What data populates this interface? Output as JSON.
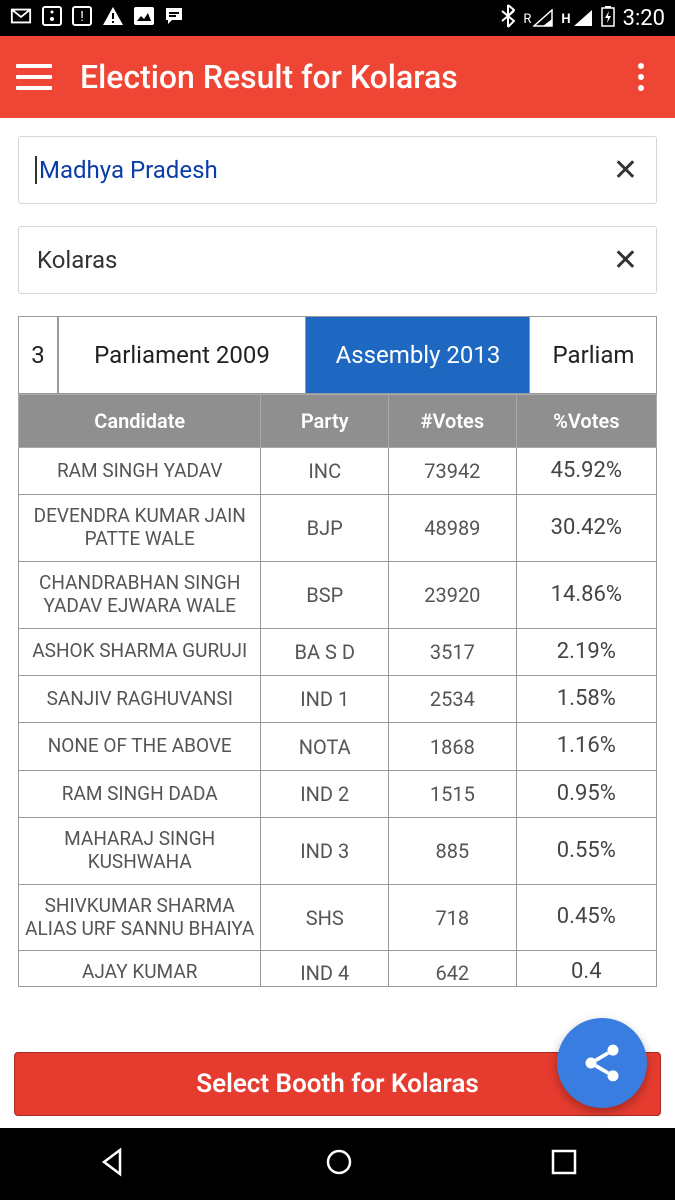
{
  "statusbar": {
    "time": "3:20",
    "network_r": "R",
    "network_h": "H"
  },
  "appbar": {
    "title": "Election Result for Kolaras"
  },
  "filters": {
    "state": "Madhya Pradesh",
    "constituency": "Kolaras"
  },
  "tabs": {
    "prev_partial": "3",
    "items": [
      "Parliament 2009",
      "Assembly 2013",
      "Parliam"
    ],
    "active_index": 1
  },
  "table": {
    "headers": [
      "Candidate",
      "Party",
      "#Votes",
      "%Votes"
    ],
    "rows": [
      {
        "candidate": "RAM SINGH YADAV",
        "party": "INC",
        "votes": "73942",
        "pct": "45.92%"
      },
      {
        "candidate": "DEVENDRA KUMAR JAIN PATTE WALE",
        "party": "BJP",
        "votes": "48989",
        "pct": "30.42%"
      },
      {
        "candidate": "CHANDRABHAN SINGH YADAV EJWARA WALE",
        "party": "BSP",
        "votes": "23920",
        "pct": "14.86%"
      },
      {
        "candidate": "ASHOK SHARMA GURUJI",
        "party": "BA S D",
        "votes": "3517",
        "pct": "2.19%"
      },
      {
        "candidate": "SANJIV RAGHUVANSI",
        "party": "IND 1",
        "votes": "2534",
        "pct": "1.58%"
      },
      {
        "candidate": "NONE OF THE ABOVE",
        "party": "NOTA",
        "votes": "1868",
        "pct": "1.16%"
      },
      {
        "candidate": "RAM SINGH DADA",
        "party": "IND 2",
        "votes": "1515",
        "pct": "0.95%"
      },
      {
        "candidate": "MAHARAJ SINGH KUSHWAHA",
        "party": "IND 3",
        "votes": "885",
        "pct": "0.55%"
      },
      {
        "candidate": "SHIVKUMAR SHARMA ALIAS URF SANNU BHAIYA",
        "party": "SHS",
        "votes": "718",
        "pct": "0.45%"
      }
    ],
    "clipped_row": {
      "candidate": "AJAY KUMAR",
      "party": "IND 4",
      "votes": "642",
      "pct": "0.4"
    }
  },
  "bottom_button": "Select Booth for Kolaras",
  "colors": {
    "primary": "#ef4535",
    "tab_active": "#1e68c1",
    "fab": "#3a7de0",
    "table_header": "#8f8f8f"
  }
}
